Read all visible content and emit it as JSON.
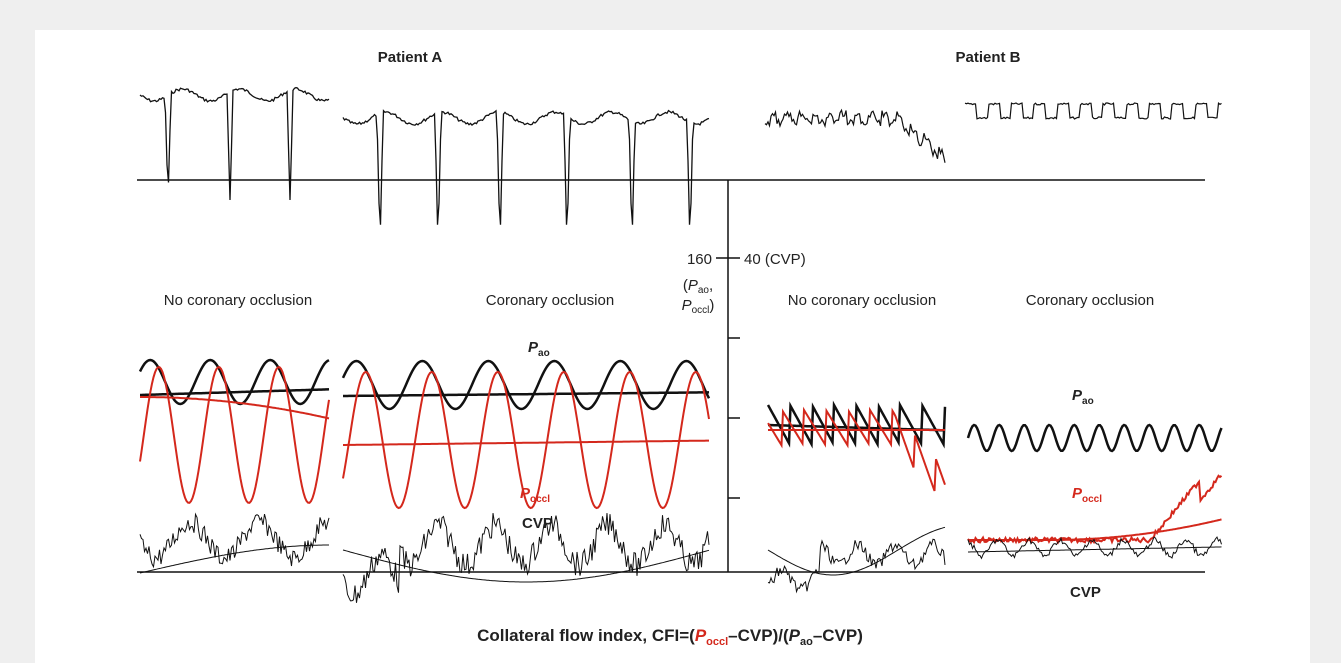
{
  "figure": {
    "patients": [
      "Patient A",
      "Patient B"
    ],
    "axis": {
      "left_tick": "160",
      "left_note": {
        "open": "(",
        "p1": "P",
        "p1_sub": "ao",
        "sep": ",",
        "p2": "P",
        "p2_sub": "occl",
        "close": ")"
      },
      "right_tick": "40 (CVP)"
    },
    "panels": [
      {
        "title": "No coronary occlusion"
      },
      {
        "title": "Coronary occlusion",
        "p_ao": {
          "symbol": "P",
          "sub": "ao"
        },
        "p_occl": {
          "symbol": "P",
          "sub": "occl"
        },
        "cvp": "CVP"
      },
      {
        "title": "No coronary occlusion"
      },
      {
        "title": "Coronary occlusion",
        "p_ao": {
          "symbol": "P",
          "sub": "ao"
        },
        "p_occl": {
          "symbol": "P",
          "sub": "occl"
        },
        "cvp": "CVP"
      }
    ],
    "caption": {
      "lead": "Collateral flow index, CFI=(",
      "p1": "P",
      "p1_sub": "occl",
      "mid": "–CVP)/(",
      "p2": "P",
      "p2_sub": "ao",
      "tail": "–CVP)"
    }
  }
}
